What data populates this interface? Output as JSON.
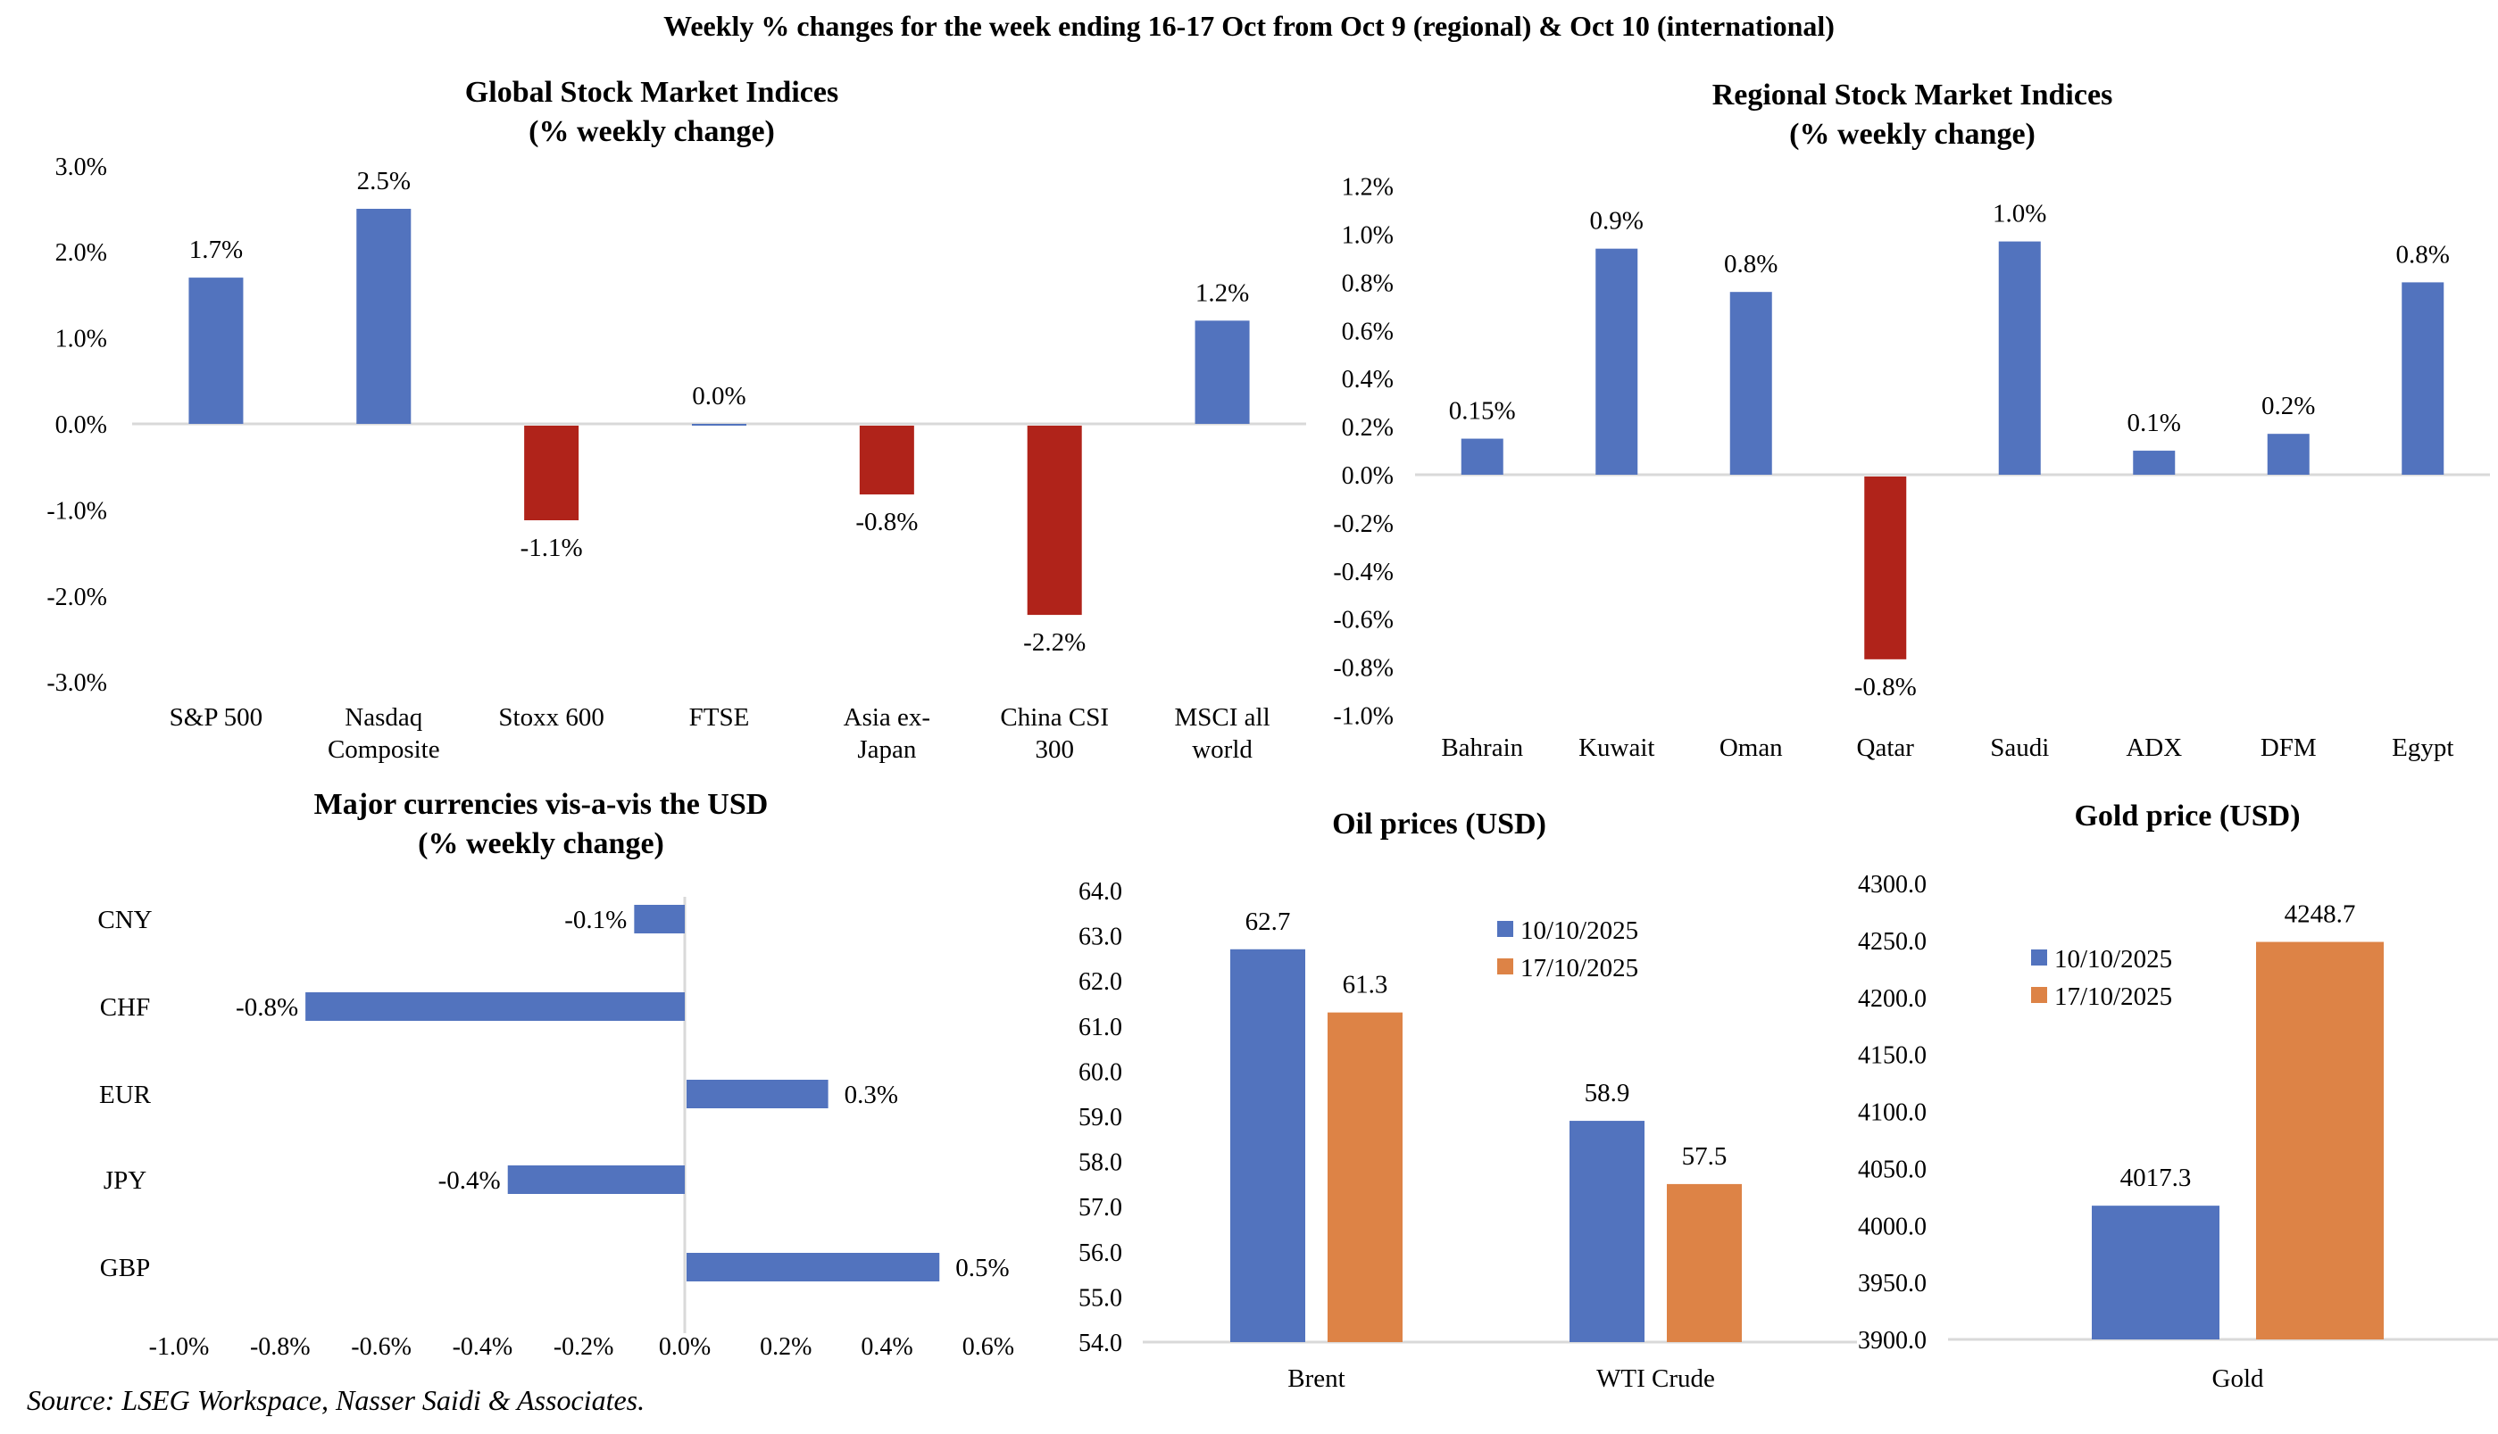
{
  "header": {
    "title": "Weekly % changes for the week ending 16-17 Oct from Oct 9 (regional) & Oct 10 (international)"
  },
  "colors": {
    "positive": "#5273BE",
    "negative": "#B0231A",
    "series_1": "#5273BE",
    "series_2": "#DD8346",
    "axis": "#D9D9D9",
    "text": "#000000"
  },
  "footer": {
    "source": "Source: LSEG Workspace, Nasser Saidi & Associates."
  },
  "chart_data": [
    {
      "id": "global",
      "type": "bar",
      "title": "Global Stock Market Indices",
      "subtitle": "(% weekly change)",
      "categories": [
        [
          "S&P 500"
        ],
        [
          "Nasdaq",
          "Composite"
        ],
        [
          "Stoxx 600"
        ],
        [
          "FTSE"
        ],
        [
          "Asia ex-",
          "Japan"
        ],
        [
          "China CSI",
          "300"
        ],
        [
          "MSCI all",
          "world"
        ]
      ],
      "values": [
        1.7,
        2.5,
        -1.1,
        0.0,
        -0.8,
        -2.2,
        1.2
      ],
      "data_labels": [
        "1.7%",
        "2.5%",
        "-1.1%",
        "0.0%",
        "-0.8%",
        "-2.2%",
        "1.2%"
      ],
      "ylim": [
        -3.0,
        3.0
      ],
      "yticks": [
        3.0,
        2.0,
        1.0,
        0.0,
        -1.0,
        -2.0,
        -3.0
      ],
      "ytick_labels": [
        "3.0%",
        "2.0%",
        "1.0%",
        "0.0%",
        "-1.0%",
        "-2.0%",
        "-3.0%"
      ],
      "grid": false,
      "legend": "none"
    },
    {
      "id": "regional",
      "type": "bar",
      "title": "Regional Stock Market Indices",
      "subtitle": "(% weekly change)",
      "categories": [
        [
          "Bahrain"
        ],
        [
          "Kuwait"
        ],
        [
          "Oman"
        ],
        [
          "Qatar"
        ],
        [
          "Saudi"
        ],
        [
          "ADX"
        ],
        [
          "DFM"
        ],
        [
          "Egypt"
        ]
      ],
      "values": [
        0.15,
        0.94,
        0.76,
        -0.76,
        0.97,
        0.1,
        0.17,
        0.8
      ],
      "data_labels": [
        "0.15%",
        "0.9%",
        "0.8%",
        "-0.8%",
        "1.0%",
        "0.1%",
        "0.2%",
        "0.8%"
      ],
      "ylim": [
        -1.0,
        1.2
      ],
      "yticks": [
        1.2,
        1.0,
        0.8,
        0.6,
        0.4,
        0.2,
        0.0,
        -0.2,
        -0.4,
        -0.6,
        -0.8,
        -1.0
      ],
      "ytick_labels": [
        "1.2%",
        "1.0%",
        "0.8%",
        "0.6%",
        "0.4%",
        "0.2%",
        "0.0%",
        "-0.2%",
        "-0.4%",
        "-0.6%",
        "-0.8%",
        "-1.0%"
      ],
      "grid": false,
      "legend": "none"
    },
    {
      "id": "currencies",
      "type": "bar",
      "orientation": "horizontal",
      "title": "Major currencies vis-a-vis the USD",
      "subtitle": "(% weekly change)",
      "categories": [
        "CNY",
        "CHF",
        "EUR",
        "JPY",
        "GBP"
      ],
      "values": [
        -0.1,
        -0.75,
        0.28,
        -0.35,
        0.5
      ],
      "data_labels": [
        "-0.1%",
        "-0.8%",
        "0.3%",
        "-0.4%",
        "0.5%"
      ],
      "xlim": [
        -1.0,
        0.6
      ],
      "xticks": [
        -1.0,
        -0.8,
        -0.6,
        -0.4,
        -0.2,
        0.0,
        0.2,
        0.4,
        0.6
      ],
      "xtick_labels": [
        "-1.0%",
        "-0.8%",
        "-0.6%",
        "-0.4%",
        "-0.2%",
        "0.0%",
        "0.2%",
        "0.4%",
        "0.6%"
      ],
      "grid": false,
      "legend": "none"
    },
    {
      "id": "oil",
      "type": "bar",
      "title": "Oil prices (USD)",
      "categories": [
        "Brent",
        "WTI Crude"
      ],
      "series": [
        {
          "name": "10/10/2025",
          "values": [
            62.7,
            58.9
          ],
          "labels": [
            "62.7",
            "58.9"
          ]
        },
        {
          "name": "17/10/2025",
          "values": [
            61.3,
            57.5
          ],
          "labels": [
            "61.3",
            "57.5"
          ]
        }
      ],
      "ylim": [
        54.0,
        64.0
      ],
      "yticks": [
        64.0,
        63.0,
        62.0,
        61.0,
        60.0,
        59.0,
        58.0,
        57.0,
        56.0,
        55.0,
        54.0
      ],
      "ytick_labels": [
        "64.0",
        "63.0",
        "62.0",
        "61.0",
        "60.0",
        "59.0",
        "58.0",
        "57.0",
        "56.0",
        "55.0",
        "54.0"
      ],
      "grid": false,
      "legend": "top-right"
    },
    {
      "id": "gold",
      "type": "bar",
      "title": "Gold price (USD)",
      "categories": [
        "Gold"
      ],
      "series": [
        {
          "name": "10/10/2025",
          "values": [
            4017.3
          ],
          "labels": [
            "4017.3"
          ]
        },
        {
          "name": "17/10/2025",
          "values": [
            4248.7
          ],
          "labels": [
            "4248.7"
          ]
        }
      ],
      "ylim": [
        3900.0,
        4300.0
      ],
      "yticks": [
        4300.0,
        4250.0,
        4200.0,
        4150.0,
        4100.0,
        4050.0,
        4000.0,
        3950.0,
        3900.0
      ],
      "ytick_labels": [
        "4300.0",
        "4250.0",
        "4200.0",
        "4150.0",
        "4100.0",
        "4050.0",
        "4000.0",
        "3950.0",
        "3900.0"
      ],
      "grid": false,
      "legend": "top-left"
    }
  ]
}
